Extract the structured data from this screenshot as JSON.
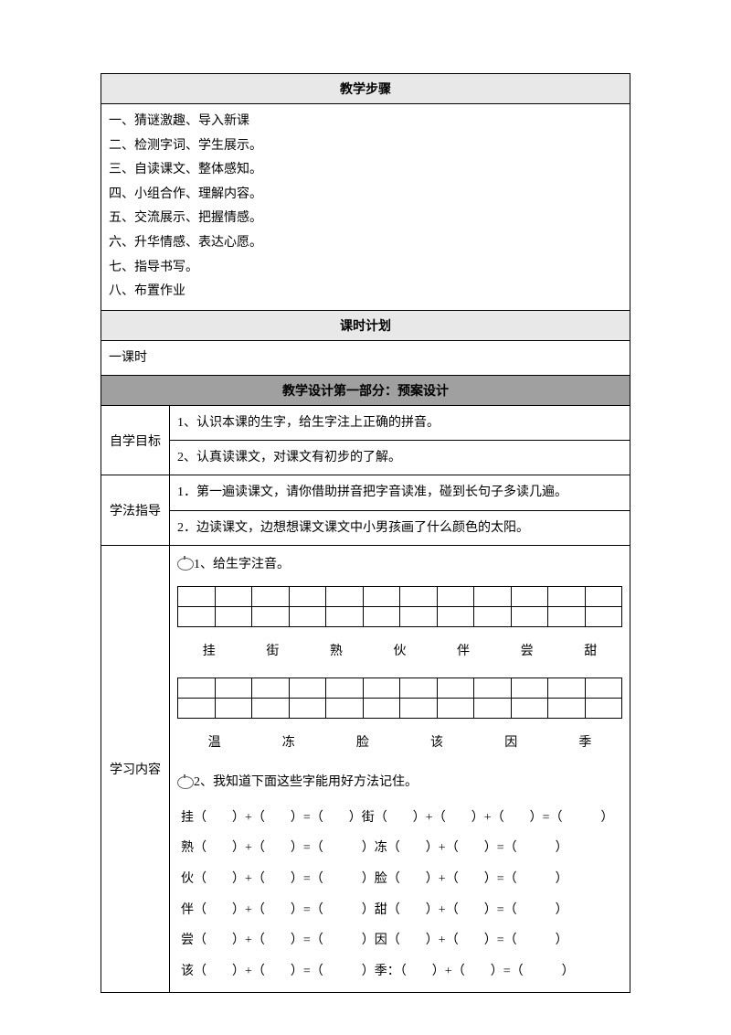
{
  "sections": {
    "steps_header": "教学步骤",
    "steps_items": [
      "一、猜谜激趣、导入新课",
      "二、检测字词、学生展示。",
      "三、自读课文、整体感知。",
      "四、小组合作、理解内容。",
      "五、交流展示、把握情感。",
      "六、升华情感、表达心愿。",
      "七、指导书写。",
      "八、布置作业"
    ],
    "plan_header": "课时计划",
    "plan_content": "一课时",
    "design_header": "教学设计第一部分：预案设计",
    "self_study_label": "自学目标",
    "self_study_1": "1、认识本课的生字，给生字注上正确的拼音。",
    "self_study_2": "2、认真读课文，对课文有初步的了解。",
    "method_label": "学法指导",
    "method_1": "1．第一遍读课文，请你借助拼音把字音读准，碰到长句子多读几遍。",
    "method_2": "2．边读课文，边想想课文课文中小男孩画了什么颜色的太阳。",
    "content_label": "学习内容",
    "task1_title": "1、给生字注音。",
    "chars_row1": [
      "挂",
      "",
      "街",
      "",
      "熟",
      "",
      "伙",
      "伴",
      "",
      "尝",
      "",
      "甜"
    ],
    "chars_row2": [
      "温",
      "",
      "冻",
      "",
      "脸",
      "",
      "该",
      "",
      "因",
      "",
      "季",
      ""
    ],
    "task2_title": "2、我知道下面这些字能用好方法记住。",
    "equations": [
      {
        "left": "挂",
        "right": "街",
        "extra": true
      },
      {
        "left": "熟",
        "right": "冻",
        "extra": false
      },
      {
        "left": "伙",
        "right": "脸",
        "extra": false
      },
      {
        "left": "伴",
        "right": "甜",
        "extra": false
      },
      {
        "left": "尝",
        "right": "因",
        "extra": false
      },
      {
        "left": "该",
        "right": "季：",
        "extra": false
      }
    ]
  },
  "colors": {
    "header_light_bg": "#e8e8e8",
    "header_dark_bg": "#a0a0a0",
    "border": "#000000",
    "text": "#000000"
  }
}
